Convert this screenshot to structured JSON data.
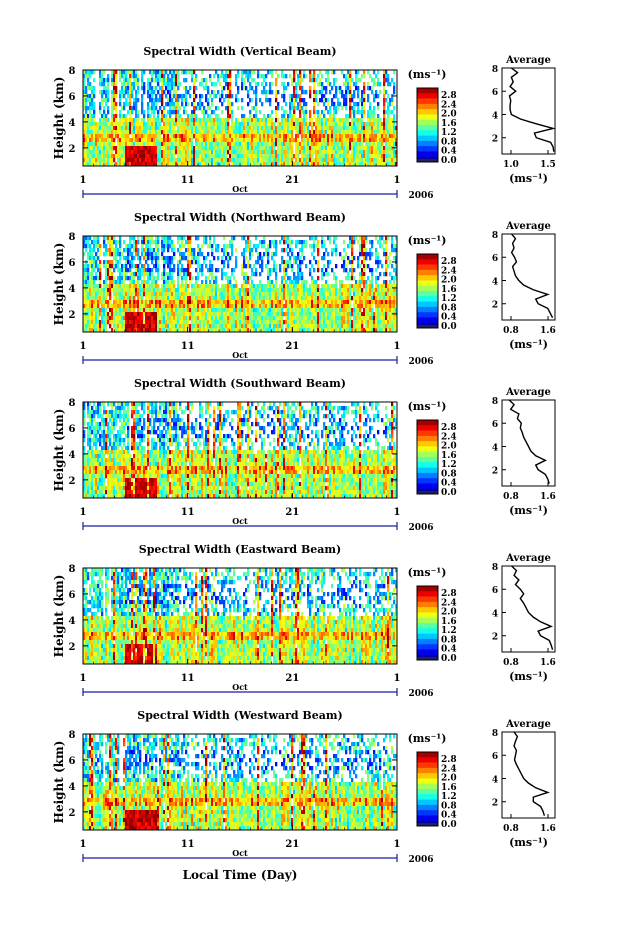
{
  "panels": [
    {
      "title": "Spectral Width (Vertical Beam)",
      "cbar_ticks": [
        "2.8",
        "2.4",
        "2.0",
        "1.6",
        "1.2",
        "0.8",
        "0.4",
        "0.0"
      ],
      "avg_ticks": [
        "1.0",
        "1.5"
      ]
    },
    {
      "title": "Spectral Width (Northward Beam)",
      "cbar_ticks": [
        "2.8",
        "2.4",
        "2.0",
        "1.6",
        "1.2",
        "0.8",
        "0.4",
        "0.0"
      ],
      "avg_ticks": [
        "0.8",
        "1.6"
      ]
    },
    {
      "title": "Spectral Width (Southward Beam)",
      "cbar_ticks": [
        "2.8",
        "2.4",
        "2.0",
        "1.6",
        "1.2",
        "0.8",
        "0.4",
        "0.0"
      ],
      "avg_ticks": [
        "0.8",
        "1.6"
      ]
    },
    {
      "title": "Spectral Width (Eastward Beam)",
      "cbar_ticks": [
        "2.8",
        "2.4",
        "2.0",
        "1.6",
        "1.2",
        "0.8",
        "0.4",
        "0.0"
      ],
      "avg_ticks": [
        "0.8",
        "1.6"
      ]
    },
    {
      "title": "Spectral Width (Westward Beam)",
      "cbar_ticks": [
        "2.8",
        "2.4",
        "2.0",
        "1.6",
        "1.2",
        "0.8",
        "0.4",
        "0.0"
      ],
      "avg_ticks": [
        "0.8",
        "1.6"
      ]
    }
  ],
  "common": {
    "ylabel": "Height (km)",
    "yticks": [
      "8",
      "6",
      "4",
      "2"
    ],
    "xticks": [
      "1",
      "11",
      "21",
      "1"
    ],
    "month": "Oct",
    "year": "2006",
    "unit": "(ms⁻¹)",
    "avg_title": "Average",
    "avg_unit": "(ms⁻¹)",
    "xlabel": "Local Time (Day)"
  },
  "chart_data": [
    {
      "type": "heatmap",
      "title": "Spectral Width (Vertical Beam)",
      "ylabel": "Height (km)",
      "ylim": [
        0.6,
        8.0
      ],
      "colorbar_range": [
        0.0,
        2.8
      ],
      "average_profile": {
        "type": "line",
        "title": "Average",
        "xlim": [
          0.8,
          1.65
        ],
        "ylim": [
          0.6,
          8.0
        ],
        "height": [
          8.0,
          7.6,
          7.2,
          6.8,
          6.4,
          6.0,
          5.6,
          5.2,
          4.8,
          4.4,
          4.0,
          3.6,
          3.2,
          2.8,
          2.4,
          2.0,
          1.6,
          1.2,
          0.8
        ],
        "width": [
          0.95,
          1.05,
          0.95,
          0.98,
          0.93,
          1.02,
          0.92,
          0.94,
          0.93,
          0.93,
          0.95,
          1.1,
          1.35,
          1.62,
          1.32,
          1.35,
          1.58,
          1.62,
          1.63
        ]
      }
    },
    {
      "type": "heatmap",
      "title": "Spectral Width (Northward Beam)",
      "ylabel": "Height (km)",
      "ylim": [
        0.6,
        8.0
      ],
      "colorbar_range": [
        0.0,
        2.8
      ],
      "average_profile": {
        "type": "line",
        "title": "Average",
        "xlim": [
          0.6,
          1.7
        ],
        "ylim": [
          0.6,
          8.0
        ],
        "height": [
          8.0,
          7.6,
          7.2,
          6.8,
          6.4,
          6.0,
          5.6,
          5.2,
          4.8,
          4.4,
          4.0,
          3.6,
          3.2,
          2.8,
          2.4,
          2.0,
          1.6,
          1.2,
          0.8
        ],
        "width": [
          0.8,
          0.88,
          0.82,
          0.85,
          0.8,
          0.86,
          0.9,
          0.82,
          0.85,
          0.88,
          0.95,
          1.05,
          1.25,
          1.55,
          1.3,
          1.35,
          1.55,
          1.6,
          1.65
        ]
      }
    },
    {
      "type": "heatmap",
      "title": "Spectral Width (Southward Beam)",
      "ylabel": "Height (km)",
      "ylim": [
        0.6,
        8.0
      ],
      "colorbar_range": [
        0.0,
        2.8
      ],
      "average_profile": {
        "type": "line",
        "title": "Average",
        "xlim": [
          0.6,
          1.7
        ],
        "ylim": [
          0.6,
          8.0
        ],
        "height": [
          8.0,
          7.6,
          7.2,
          6.8,
          6.4,
          6.0,
          5.6,
          5.2,
          4.8,
          4.4,
          4.0,
          3.6,
          3.2,
          2.8,
          2.4,
          2.0,
          1.6,
          1.2,
          0.8
        ],
        "width": [
          0.75,
          0.85,
          0.78,
          0.95,
          0.92,
          1.0,
          0.98,
          1.02,
          1.05,
          1.1,
          1.15,
          1.2,
          1.3,
          1.5,
          1.3,
          1.35,
          1.5,
          1.55,
          1.58
        ]
      }
    },
    {
      "type": "heatmap",
      "title": "Spectral Width (Eastward Beam)",
      "ylabel": "Height (km)",
      "ylim": [
        0.6,
        8.0
      ],
      "colorbar_range": [
        0.0,
        2.8
      ],
      "average_profile": {
        "type": "line",
        "title": "Average",
        "xlim": [
          0.6,
          1.7
        ],
        "ylim": [
          0.6,
          8.0
        ],
        "height": [
          8.0,
          7.6,
          7.2,
          6.8,
          6.4,
          6.0,
          5.6,
          5.2,
          4.8,
          4.4,
          4.0,
          3.6,
          3.2,
          2.8,
          2.4,
          2.0,
          1.6,
          1.2,
          0.8
        ],
        "width": [
          0.8,
          0.9,
          0.85,
          0.95,
          0.88,
          0.98,
          1.05,
          0.98,
          1.05,
          1.1,
          1.15,
          1.25,
          1.4,
          1.62,
          1.35,
          1.4,
          1.58,
          1.62,
          1.65
        ]
      }
    },
    {
      "type": "heatmap",
      "title": "Spectral Width (Westward Beam)",
      "ylabel": "Height (km)",
      "ylim": [
        0.6,
        8.0
      ],
      "colorbar_range": [
        0.0,
        2.8
      ],
      "average_profile": {
        "type": "line",
        "title": "Average",
        "xlim": [
          0.6,
          1.7
        ],
        "ylim": [
          0.6,
          8.0
        ],
        "height": [
          8.0,
          7.6,
          7.2,
          6.8,
          6.4,
          6.0,
          5.6,
          5.2,
          4.8,
          4.4,
          4.0,
          3.6,
          3.2,
          2.8,
          2.4,
          2.0,
          1.6,
          1.2,
          0.8
        ],
        "width": [
          0.85,
          0.92,
          0.88,
          0.85,
          0.9,
          0.88,
          0.86,
          0.9,
          0.95,
          1.0,
          1.05,
          1.15,
          1.3,
          1.55,
          1.25,
          1.25,
          1.4,
          1.45,
          1.48
        ]
      }
    }
  ]
}
